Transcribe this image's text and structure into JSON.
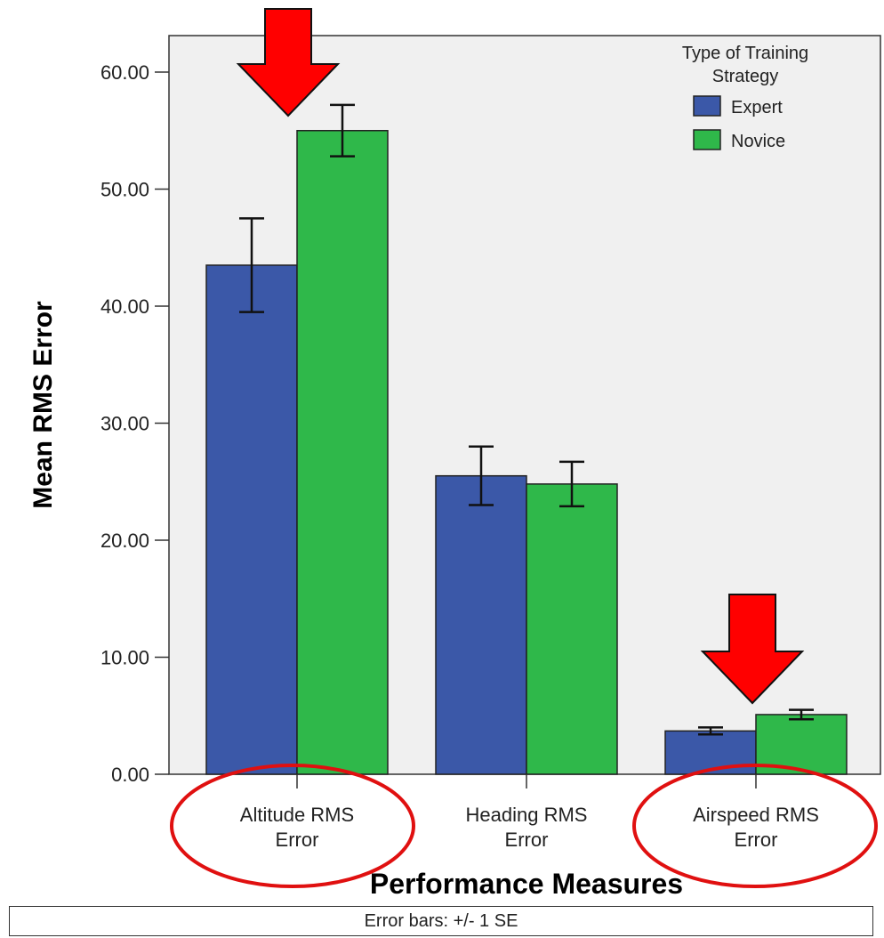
{
  "chart_data": {
    "type": "bar",
    "title": "",
    "xlabel": "Performance Measures",
    "ylabel": "Mean RMS Error",
    "ylim": [
      0,
      60
    ],
    "yticks": [
      "0.00",
      "10.00",
      "20.00",
      "30.00",
      "40.00",
      "50.00",
      "60.00"
    ],
    "ytick_values": [
      0,
      10,
      20,
      30,
      40,
      50,
      60
    ],
    "categories": [
      [
        "Altitude RMS",
        "Error"
      ],
      [
        "Heading RMS",
        "Error"
      ],
      [
        "Airspeed RMS",
        "Error"
      ]
    ],
    "legend": {
      "title_lines": [
        "Type of Training",
        "Strategy"
      ],
      "placement": "top-right"
    },
    "series": [
      {
        "name": "Expert",
        "color": "#3b58a8",
        "values": [
          43.5,
          25.5,
          3.7
        ],
        "errors": [
          4.0,
          2.5,
          0.3
        ]
      },
      {
        "name": "Novice",
        "color": "#2fb84a",
        "values": [
          55.0,
          24.8,
          5.1
        ],
        "errors": [
          2.2,
          1.9,
          0.4
        ]
      }
    ],
    "grid": false,
    "footnote": "Error bars: +/- 1 SE",
    "annotations": {
      "arrows_above": [
        0,
        2
      ],
      "arrow_color": "#ff0000",
      "circled_categories": [
        0,
        2
      ],
      "circle_color": "#e01010"
    }
  }
}
